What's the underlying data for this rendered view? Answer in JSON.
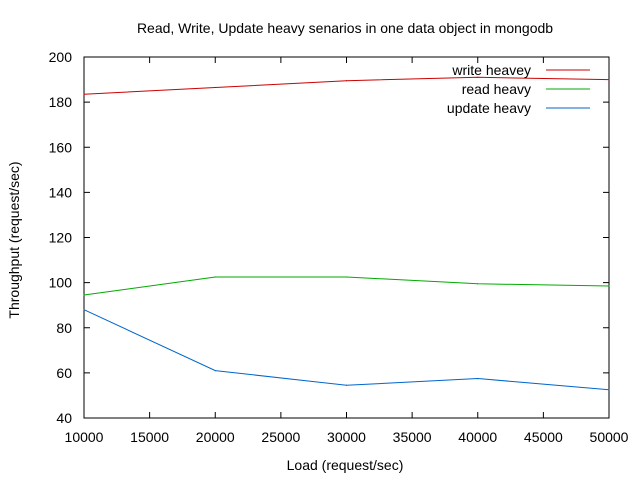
{
  "chart_data": {
    "type": "line",
    "title": "Read, Write, Update heavy senarios in one data object in mongodb",
    "xlabel": "Load (request/sec)",
    "ylabel": "Throughput (request/sec)",
    "xlim": [
      10000,
      50000
    ],
    "ylim": [
      40,
      200
    ],
    "xticks": [
      10000,
      15000,
      20000,
      25000,
      30000,
      35000,
      40000,
      45000,
      50000
    ],
    "yticks": [
      40,
      60,
      80,
      100,
      120,
      140,
      160,
      180,
      200
    ],
    "grid": false,
    "legend_position": "top-right",
    "x": [
      10000,
      20000,
      30000,
      40000,
      50000
    ],
    "series": [
      {
        "name": "write heavey",
        "color": "#cc0000",
        "values": [
          183.5,
          186.5,
          189.5,
          191.0,
          190.0
        ]
      },
      {
        "name": "read heavy",
        "color": "#00aa00",
        "values": [
          94.5,
          102.5,
          102.5,
          99.5,
          98.5
        ]
      },
      {
        "name": "update heavy",
        "color": "#0066cc",
        "values": [
          88.0,
          61.0,
          54.5,
          57.5,
          52.5
        ]
      }
    ]
  }
}
